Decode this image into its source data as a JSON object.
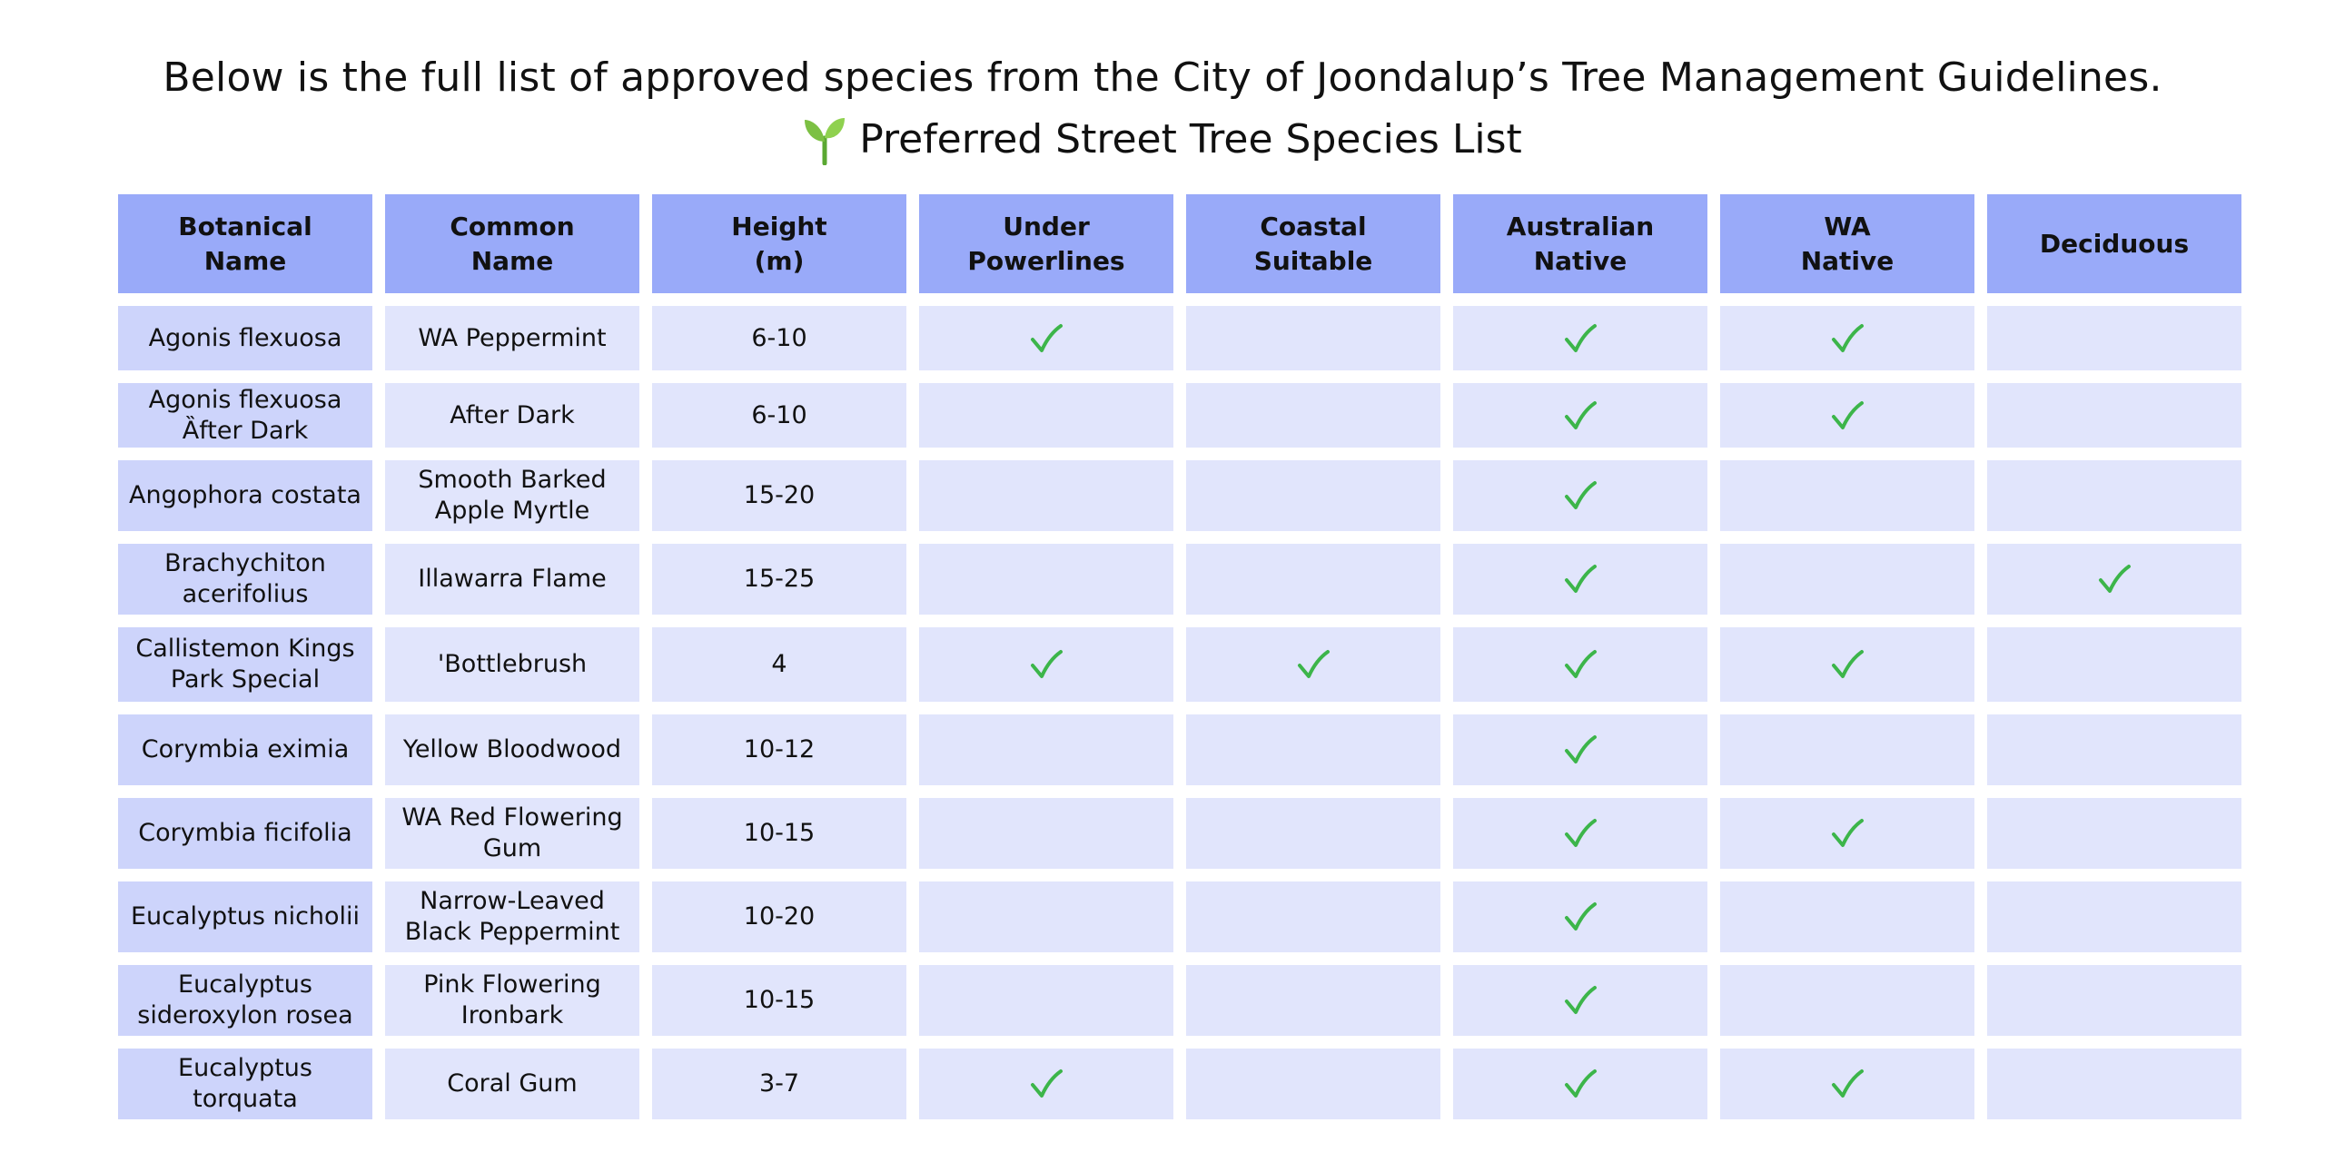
{
  "intro": "Below is the full list of approved species from the City of Joondalup’s Tree Management Guidelines.",
  "title": "Preferred Street Tree Species List",
  "title_icon": "seedling-icon",
  "colors": {
    "header_bg": "#99aaf9",
    "cell_bg": "#e1e5fc",
    "botanical_bg": "#cdd4fb",
    "check": "#3cb54a"
  },
  "table": {
    "headers": [
      "Botanical Name",
      "Common Name",
      "Height (m)",
      "Under Powerlines",
      "Coastal Suitable",
      "Australian Native",
      "WA Native",
      "Deciduous"
    ],
    "header_lines": [
      [
        "Botanical",
        "Name"
      ],
      [
        "Common",
        "Name"
      ],
      [
        "Height",
        "(m)"
      ],
      [
        "Under",
        "Powerlines"
      ],
      [
        "Coastal",
        "Suitable"
      ],
      [
        "Australian",
        "Native"
      ],
      [
        "WA",
        "Native"
      ],
      [
        "Deciduous"
      ]
    ],
    "rows": [
      {
        "botanical": "Agonis flexuosa",
        "common": "WA Peppermint",
        "height": "6-10",
        "under_powerlines": true,
        "coastal": false,
        "australian_native": true,
        "wa_native": true,
        "deciduous": false
      },
      {
        "botanical": "Agonis flexuosa Ȁfter Dark",
        "common": "After Dark",
        "height": "6-10",
        "under_powerlines": false,
        "coastal": false,
        "australian_native": true,
        "wa_native": true,
        "deciduous": false
      },
      {
        "botanical": "Angophora costata",
        "common": "Smooth Barked Apple Myrtle",
        "height": "15-20",
        "under_powerlines": false,
        "coastal": false,
        "australian_native": true,
        "wa_native": false,
        "deciduous": false
      },
      {
        "botanical": "Brachychiton acerifolius",
        "common": "Illawarra Flame",
        "height": "15-25",
        "under_powerlines": false,
        "coastal": false,
        "australian_native": true,
        "wa_native": false,
        "deciduous": true
      },
      {
        "botanical": "Callistemon Kings Park Special",
        "common": "'Bottlebrush",
        "height": "4",
        "under_powerlines": true,
        "coastal": true,
        "australian_native": true,
        "wa_native": true,
        "deciduous": false
      },
      {
        "botanical": "Corymbia eximia",
        "common": "Yellow Bloodwood",
        "height": "10-12",
        "under_powerlines": false,
        "coastal": false,
        "australian_native": true,
        "wa_native": false,
        "deciduous": false
      },
      {
        "botanical": "Corymbia ficifolia",
        "common": "WA Red Flowering Gum",
        "height": "10-15",
        "under_powerlines": false,
        "coastal": false,
        "australian_native": true,
        "wa_native": true,
        "deciduous": false
      },
      {
        "botanical": "Eucalyptus nicholii",
        "common": "Narrow-Leaved Black Peppermint",
        "height": "10-20",
        "under_powerlines": false,
        "coastal": false,
        "australian_native": true,
        "wa_native": false,
        "deciduous": false
      },
      {
        "botanical": "Eucalyptus sideroxylon rosea",
        "common": "Pink Flowering Ironbark",
        "height": "10-15",
        "under_powerlines": false,
        "coastal": false,
        "australian_native": true,
        "wa_native": false,
        "deciduous": false
      },
      {
        "botanical": "Eucalyptus torquata",
        "common": "Coral Gum",
        "height": "3-7",
        "under_powerlines": true,
        "coastal": false,
        "australian_native": true,
        "wa_native": true,
        "deciduous": false
      }
    ]
  }
}
